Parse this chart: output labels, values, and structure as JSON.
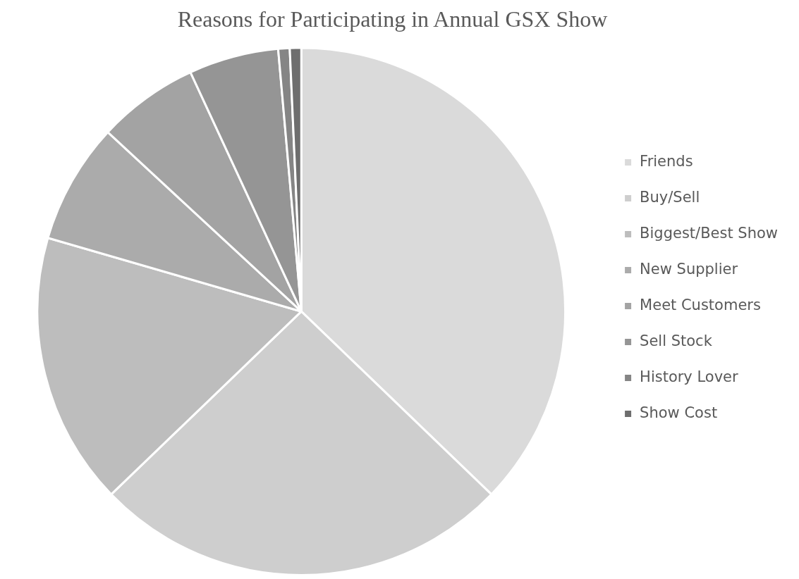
{
  "chart_data": {
    "type": "pie",
    "title": "Reasons for Participating in Annual GSX Show",
    "categories": [
      "Friends",
      "Buy/Sell",
      "Biggest/Best Show",
      "New Supplier",
      "Meet Customers",
      "Sell Stock",
      "History Lover",
      "Show Cost"
    ],
    "values": [
      37.2,
      25.6,
      16.7,
      7.4,
      6.2,
      5.5,
      0.7,
      0.7
    ],
    "colors": [
      "#dadada",
      "#cecece",
      "#bdbdbd",
      "#ababab",
      "#a3a3a3",
      "#959595",
      "#858585",
      "#6e6e6e"
    ],
    "legend": "right"
  }
}
